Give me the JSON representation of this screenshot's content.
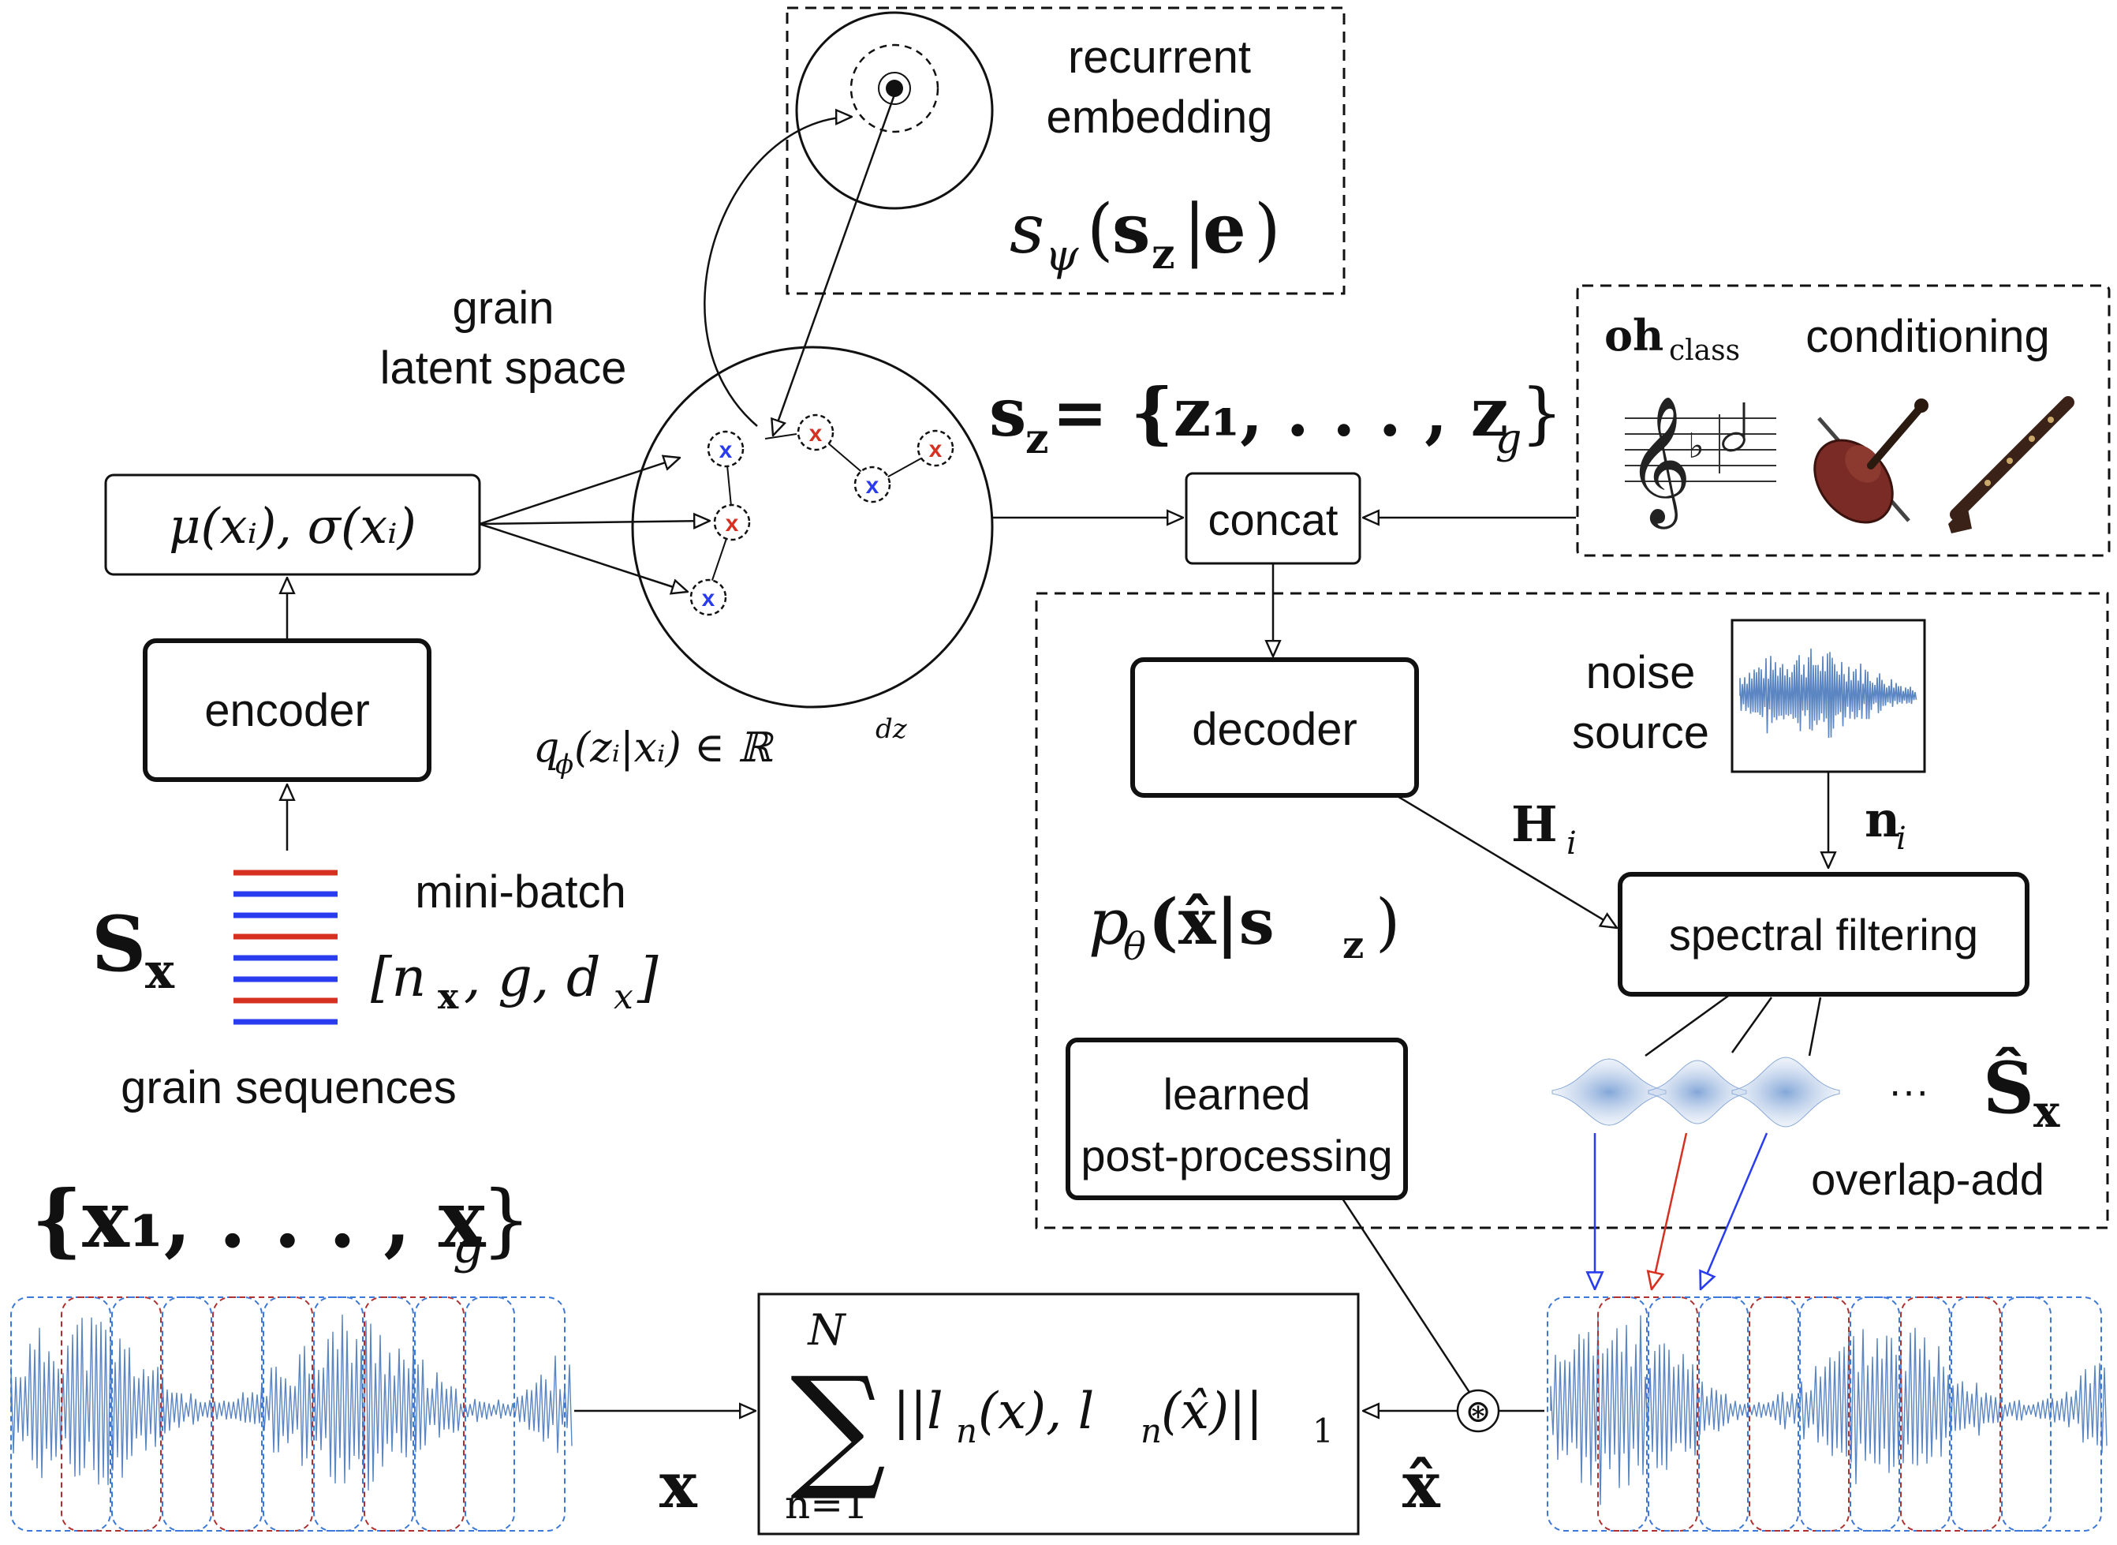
{
  "labels": {
    "recurrent": "recurrent",
    "embedding": "embedding",
    "grain": "grain",
    "latent_space": "latent space",
    "encoder": "encoder",
    "decoder": "decoder",
    "concat": "concat",
    "conditioning": "conditioning",
    "oh": "oh",
    "class": "class",
    "noise": "noise",
    "source": "source",
    "spectral_filtering": "spectral filtering",
    "learned": "learned",
    "post_processing": "post-processing",
    "mini_batch": "mini-batch",
    "grain_sequences": "grain sequences",
    "overlap_add": "overlap-add",
    "ellipsis": "···"
  },
  "math": {
    "s_psi": "s",
    "psi": "ψ",
    "s_psi_args_open": "(",
    "s_psi_sz": "s",
    "s_psi_z": "z",
    "s_psi_bar": "|",
    "s_psi_e": "e",
    "s_psi_close": ")",
    "mu_sigma": "μ(xᵢ), σ(xᵢ)",
    "q_phi": "q",
    "phi": "ϕ",
    "q_args": "(zᵢ|xᵢ) ∈ ℝ",
    "dz": "dz",
    "sz_set_s": "s",
    "sz_set_z": "z",
    "sz_set_rhs": " = {z₁, . . . , z",
    "sz_set_g": "g",
    "sz_set_close": "}",
    "H_i": "H",
    "i1": "i",
    "n_i": "n",
    "i2": "i",
    "p_theta": "p",
    "theta": "θ",
    "p_args": "(x̂|s",
    "p_z": "z",
    "p_close": ")",
    "S_x": "S",
    "S_x_sub": "x",
    "batch_dims": "[n",
    "batch_x": "x",
    "batch_rest": ", g, d",
    "batch_dx": "x",
    "batch_close": "]",
    "grain_set": "{x₁, . . . , x",
    "grain_set_g": "g",
    "grain_set_close": "}",
    "S_hat": "Ŝ",
    "S_hat_sub": "x",
    "sum": "∑",
    "sum_top": "N",
    "sum_bottom": "n=1",
    "loss": "||l",
    "loss_n1": "n",
    "loss_mid": "(x), l",
    "loss_n2": "n",
    "loss_end": "(x̂)||",
    "loss_sub": "1",
    "x_bold": "x",
    "x_hat_bold": "x̂",
    "conv": "⊛"
  },
  "colors": {
    "red": "#d63020",
    "blue": "#2a3cf0",
    "wave": "#5b86c2",
    "grain_red": "#b03030",
    "grain_blue": "#3c78d8"
  }
}
